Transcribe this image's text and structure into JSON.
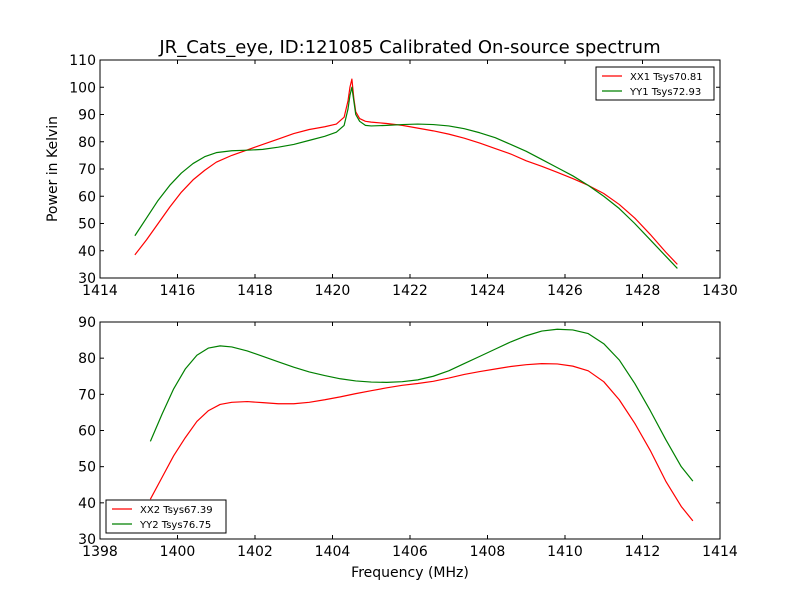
{
  "figure": {
    "title": "JR_Cats_eye, ID:121085 Calibrated On-source spectrum",
    "ylabel": "Power in Kelvin",
    "xlabel": "Frequency (MHz)"
  },
  "chart_data": [
    {
      "type": "line",
      "title": "JR_Cats_eye, ID:121085 Calibrated On-source spectrum",
      "xlabel": "",
      "ylabel": "Power in Kelvin",
      "xlim": [
        1414,
        1430
      ],
      "ylim": [
        30,
        110
      ],
      "xticks": [
        1414,
        1416,
        1418,
        1420,
        1422,
        1424,
        1426,
        1428,
        1430
      ],
      "yticks": [
        30,
        40,
        50,
        60,
        70,
        80,
        90,
        100,
        110
      ],
      "grid": false,
      "legend_position": "top-right",
      "series": [
        {
          "name": "XX1 Tsys70.81",
          "color": "#ff0000",
          "x": [
            1414.9,
            1415.2,
            1415.5,
            1415.8,
            1416.1,
            1416.4,
            1416.7,
            1417.0,
            1417.4,
            1417.8,
            1418.2,
            1418.6,
            1419.0,
            1419.4,
            1419.8,
            1420.1,
            1420.3,
            1420.4,
            1420.45,
            1420.5,
            1420.55,
            1420.6,
            1420.7,
            1420.85,
            1421.0,
            1421.4,
            1421.8,
            1422.2,
            1422.6,
            1423.0,
            1423.4,
            1423.8,
            1424.2,
            1424.6,
            1425.0,
            1425.4,
            1425.8,
            1426.2,
            1426.6,
            1427.0,
            1427.4,
            1427.8,
            1428.2,
            1428.6,
            1428.9
          ],
          "y": [
            38.5,
            44,
            50,
            56,
            61.5,
            66,
            69.5,
            72.5,
            75,
            77,
            79,
            81,
            83,
            84.5,
            85.5,
            86.5,
            89,
            95,
            100,
            103,
            96,
            91,
            88.5,
            87.5,
            87.2,
            86.7,
            86,
            85,
            84,
            82.8,
            81.3,
            79.5,
            77.5,
            75.5,
            73,
            71,
            68.8,
            66.5,
            64,
            61,
            57,
            52,
            46,
            39.5,
            35
          ]
        },
        {
          "name": "YY1 Tsys72.93",
          "color": "#008000",
          "x": [
            1414.9,
            1415.2,
            1415.5,
            1415.8,
            1416.1,
            1416.4,
            1416.7,
            1417.0,
            1417.4,
            1417.8,
            1418.2,
            1418.6,
            1419.0,
            1419.4,
            1419.8,
            1420.1,
            1420.3,
            1420.4,
            1420.45,
            1420.5,
            1420.55,
            1420.6,
            1420.7,
            1420.85,
            1421.0,
            1421.4,
            1421.8,
            1422.2,
            1422.6,
            1423.0,
            1423.4,
            1423.8,
            1424.2,
            1424.6,
            1425.0,
            1425.4,
            1425.8,
            1426.2,
            1426.6,
            1427.0,
            1427.4,
            1427.8,
            1428.2,
            1428.6,
            1428.9
          ],
          "y": [
            45.5,
            52,
            58.5,
            64,
            68.5,
            72,
            74.5,
            76,
            76.7,
            76.9,
            77.2,
            78,
            79,
            80.5,
            82,
            83.5,
            86,
            92,
            97,
            100,
            95,
            90,
            87.5,
            86,
            85.8,
            86,
            86.3,
            86.5,
            86.3,
            85.8,
            84.8,
            83.3,
            81.5,
            79,
            76.5,
            73.5,
            70.5,
            67.5,
            64,
            60,
            55.5,
            50,
            44,
            38,
            33.5
          ]
        }
      ]
    },
    {
      "type": "line",
      "title": "",
      "xlabel": "Frequency (MHz)",
      "ylabel": "",
      "xlim": [
        1398,
        1414
      ],
      "ylim": [
        30,
        90
      ],
      "xticks": [
        1398,
        1400,
        1402,
        1404,
        1406,
        1408,
        1410,
        1412,
        1414
      ],
      "yticks": [
        30,
        40,
        50,
        60,
        70,
        80,
        90
      ],
      "grid": false,
      "legend_position": "bottom-left",
      "series": [
        {
          "name": "XX2 Tsys67.39",
          "color": "#ff0000",
          "x": [
            1399.3,
            1399.6,
            1399.9,
            1400.2,
            1400.5,
            1400.8,
            1401.1,
            1401.4,
            1401.8,
            1402.2,
            1402.6,
            1403.0,
            1403.4,
            1403.8,
            1404.2,
            1404.6,
            1405.0,
            1405.4,
            1405.8,
            1406.2,
            1406.6,
            1407.0,
            1407.4,
            1407.8,
            1408.2,
            1408.6,
            1409.0,
            1409.4,
            1409.8,
            1410.2,
            1410.6,
            1411.0,
            1411.4,
            1411.8,
            1412.2,
            1412.6,
            1413.0,
            1413.3
          ],
          "y": [
            41,
            47,
            53,
            58,
            62.5,
            65.5,
            67.2,
            67.8,
            68,
            67.7,
            67.4,
            67.4,
            67.8,
            68.5,
            69.3,
            70.2,
            71,
            71.8,
            72.5,
            73,
            73.6,
            74.5,
            75.5,
            76.3,
            77,
            77.7,
            78.2,
            78.5,
            78.4,
            77.8,
            76.5,
            73.5,
            68.5,
            62,
            54.5,
            46,
            39,
            35
          ]
        },
        {
          "name": "YY2 Tsys76.75",
          "color": "#008000",
          "x": [
            1399.3,
            1399.6,
            1399.9,
            1400.2,
            1400.5,
            1400.8,
            1401.1,
            1401.4,
            1401.8,
            1402.2,
            1402.6,
            1403.0,
            1403.4,
            1403.8,
            1404.2,
            1404.6,
            1405.0,
            1405.4,
            1405.8,
            1406.2,
            1406.6,
            1407.0,
            1407.4,
            1407.8,
            1408.2,
            1408.6,
            1409.0,
            1409.4,
            1409.8,
            1410.2,
            1410.6,
            1411.0,
            1411.4,
            1411.8,
            1412.2,
            1412.6,
            1413.0,
            1413.3
          ],
          "y": [
            57,
            64.5,
            71.5,
            77,
            80.8,
            82.8,
            83.4,
            83.1,
            82,
            80.5,
            79,
            77.5,
            76.2,
            75.2,
            74.3,
            73.7,
            73.4,
            73.3,
            73.5,
            74,
            75,
            76.5,
            78.5,
            80.5,
            82.5,
            84.5,
            86.2,
            87.5,
            88,
            87.8,
            86.8,
            84,
            79.5,
            73,
            65.5,
            57.5,
            50,
            46
          ]
        }
      ]
    }
  ]
}
